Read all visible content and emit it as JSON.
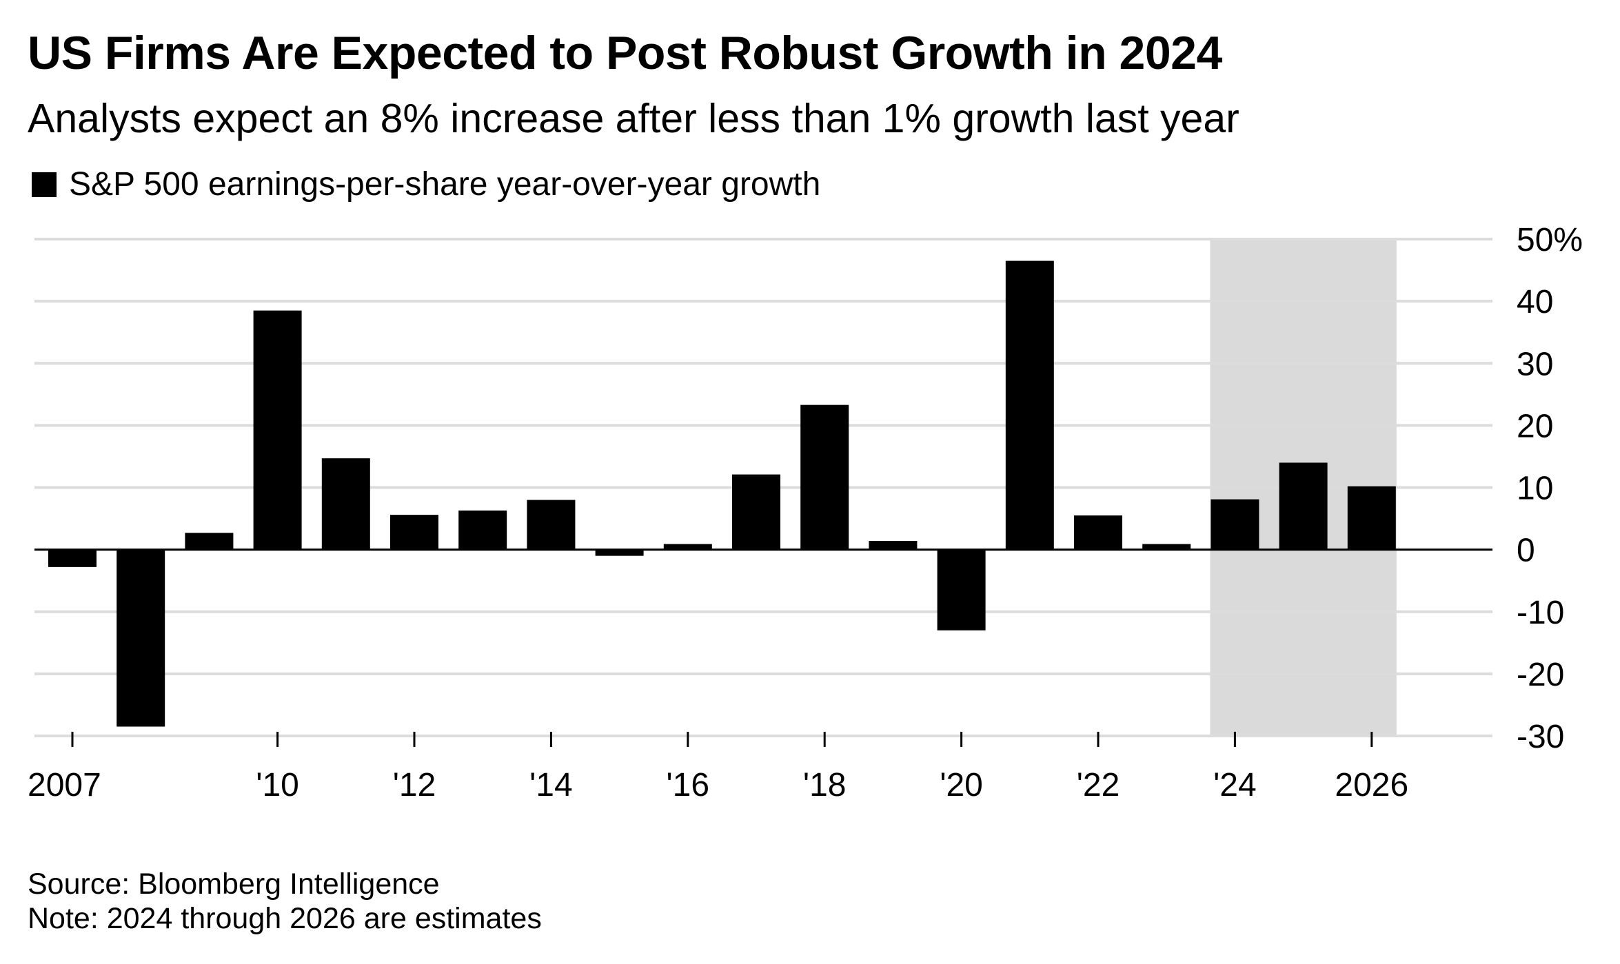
{
  "title": "US Firms Are Expected to Post Robust Growth in 2024",
  "subtitle": "Analysts expect an 8% increase after less than 1% growth last year",
  "legend": {
    "label": "S&P 500 earnings-per-share year-over-year growth",
    "color": "#000000"
  },
  "source": "Source: Bloomberg Intelligence",
  "note": "Note: 2024 through 2026 are estimates",
  "chart_data": {
    "type": "bar",
    "x": [
      2007,
      2008,
      2009,
      2010,
      2011,
      2012,
      2013,
      2014,
      2015,
      2016,
      2017,
      2018,
      2019,
      2020,
      2021,
      2022,
      2023,
      2024,
      2025,
      2026
    ],
    "series": [
      {
        "name": "S&P 500 earnings-per-share year-over-year growth",
        "values": [
          -2.8,
          -28.5,
          2.7,
          38.5,
          14.7,
          5.6,
          6.3,
          8.0,
          -1.0,
          0.9,
          12.1,
          23.3,
          1.4,
          -13.0,
          46.5,
          5.5,
          0.9,
          8.1,
          14.0,
          10.2
        ]
      }
    ],
    "estimate_range": [
      2024,
      2026
    ],
    "xticks": [
      2007,
      2010,
      2012,
      2014,
      2016,
      2018,
      2020,
      2022,
      2024,
      2026
    ],
    "xtick_labels": [
      "2007",
      "'10",
      "'12",
      "'14",
      "'16",
      "'18",
      "'20",
      "'22",
      "'24",
      "2026"
    ],
    "yticks": [
      50,
      40,
      30,
      20,
      10,
      0,
      -10,
      -20,
      -30
    ],
    "ytick_labels": [
      "50%",
      "40",
      "30",
      "20",
      "10",
      "0",
      "-10",
      "-20",
      "-30"
    ],
    "ylim": [
      -30,
      50
    ],
    "grid": true,
    "colors": {
      "bar": "#000000",
      "grid": "#dcdcdc",
      "shade": "#dadada",
      "zero": "#000000"
    }
  }
}
